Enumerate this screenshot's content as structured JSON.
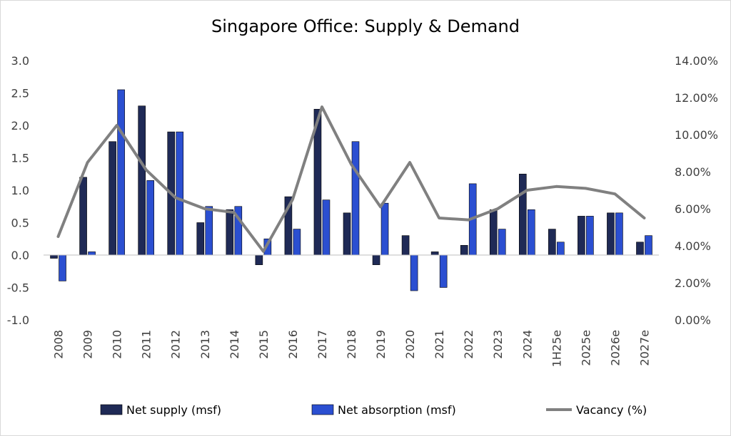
{
  "chart_data": {
    "type": "bar",
    "title": "Singapore Office: Supply & Demand",
    "categories": [
      "2008",
      "2009",
      "2010",
      "2011",
      "2012",
      "2013",
      "2014",
      "2015",
      "2016",
      "2017",
      "2018",
      "2019",
      "2020",
      "2021",
      "2022",
      "2023",
      "2024",
      "1H25e",
      "2025e",
      "2026e",
      "2027e"
    ],
    "series": [
      {
        "name": "Net supply (msf)",
        "type": "bar",
        "axis": "left",
        "color": "#1f2a56",
        "values": [
          -0.05,
          1.2,
          1.75,
          2.3,
          1.9,
          0.5,
          0.7,
          -0.15,
          0.9,
          2.25,
          0.65,
          -0.15,
          0.3,
          0.05,
          0.15,
          0.7,
          1.25,
          0.4,
          0.6,
          0.65,
          0.2
        ]
      },
      {
        "name": "Net absorption (msf)",
        "type": "bar",
        "axis": "left",
        "color": "#2b4fd1",
        "values": [
          -0.4,
          0.05,
          2.55,
          1.15,
          1.9,
          0.75,
          0.75,
          0.25,
          0.4,
          0.85,
          1.75,
          0.8,
          -0.55,
          -0.5,
          1.1,
          0.4,
          0.7,
          0.2,
          0.6,
          0.65,
          0.3
        ]
      },
      {
        "name": "Vacancy (%)",
        "type": "line",
        "axis": "right",
        "color": "#808080",
        "values": [
          4.5,
          8.5,
          10.5,
          8.1,
          6.6,
          6.0,
          5.8,
          3.7,
          6.5,
          11.5,
          8.4,
          6.1,
          8.5,
          5.5,
          5.4,
          6.0,
          7.0,
          7.2,
          7.1,
          6.8,
          5.5
        ]
      }
    ],
    "y_left": {
      "min": -1.0,
      "max": 3.0,
      "ticks": [
        "-1.0",
        "-0.5",
        "0.0",
        "0.5",
        "1.0",
        "1.5",
        "2.0",
        "2.5",
        "3.0"
      ]
    },
    "y_right": {
      "min": 0,
      "max": 14,
      "ticks": [
        "0.00%",
        "2.00%",
        "4.00%",
        "6.00%",
        "8.00%",
        "10.00%",
        "12.00%",
        "14.00%"
      ]
    },
    "legend": {
      "position": "bottom"
    },
    "grid": false
  }
}
